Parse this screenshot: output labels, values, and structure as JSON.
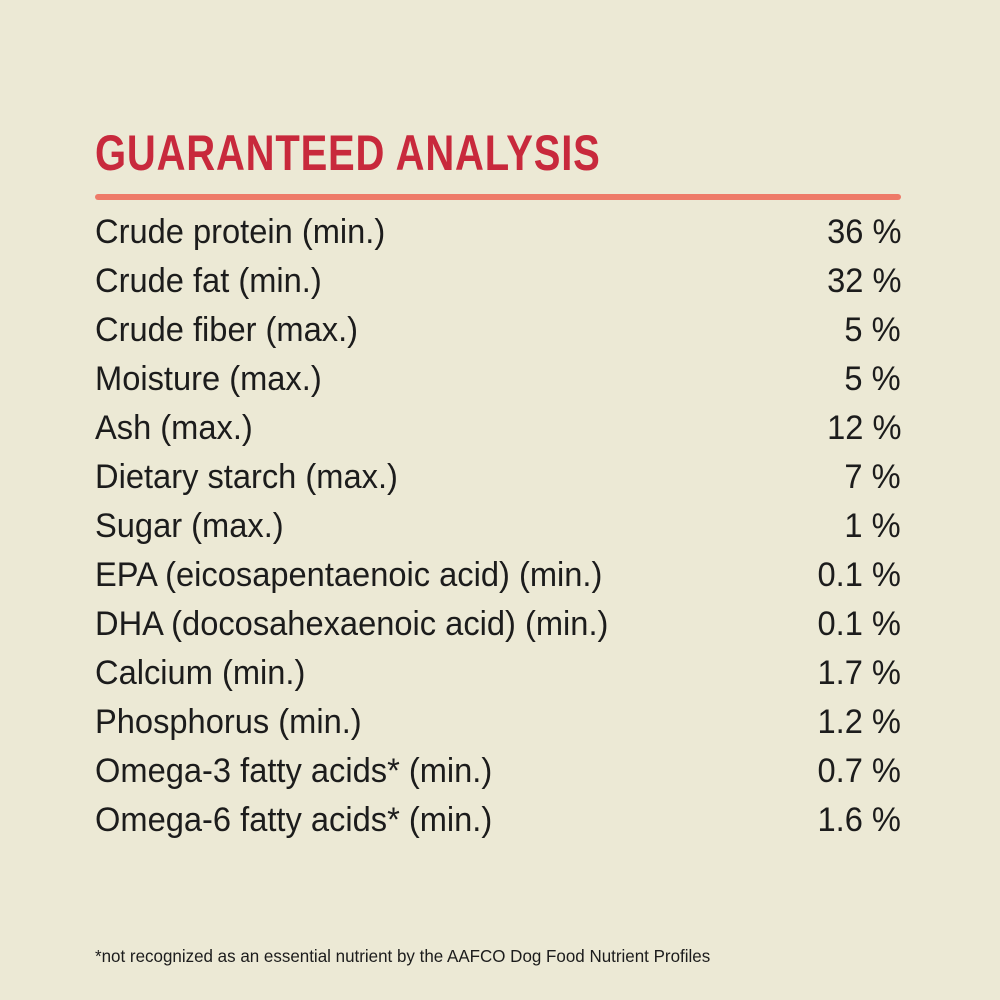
{
  "page": {
    "background_color": "#ECE9D5",
    "title_color": "#C8293C",
    "divider_color": "#EE7A68",
    "text_color": "#1C1C1C"
  },
  "header": {
    "title": "GUARANTEED ANALYSIS"
  },
  "analysis": {
    "rows": [
      {
        "label": "Crude protein (min.)",
        "value": "36 %"
      },
      {
        "label": "Crude fat (min.)",
        "value": "32 %"
      },
      {
        "label": "Crude fiber (max.)",
        "value": "5 %"
      },
      {
        "label": "Moisture (max.)",
        "value": "5 %"
      },
      {
        "label": "Ash (max.)",
        "value": "12 %"
      },
      {
        "label": "Dietary starch (max.)",
        "value": "7 %"
      },
      {
        "label": "Sugar (max.)",
        "value": "1 %"
      },
      {
        "label": "EPA (eicosapentaenoic acid) (min.)",
        "value": "0.1 %"
      },
      {
        "label": "DHA (docosahexaenoic acid) (min.)",
        "value": "0.1 %"
      },
      {
        "label": "Calcium (min.)",
        "value": "1.7 %"
      },
      {
        "label": "Phosphorus (min.)",
        "value": "1.2 %"
      },
      {
        "label": "Omega-3 fatty acids* (min.)",
        "value": "0.7 %"
      },
      {
        "label": "Omega-6 fatty acids* (min.)",
        "value": "1.6 %"
      }
    ]
  },
  "footnote": "*not recognized as an essential nutrient by the AAFCO Dog Food Nutrient Profiles"
}
